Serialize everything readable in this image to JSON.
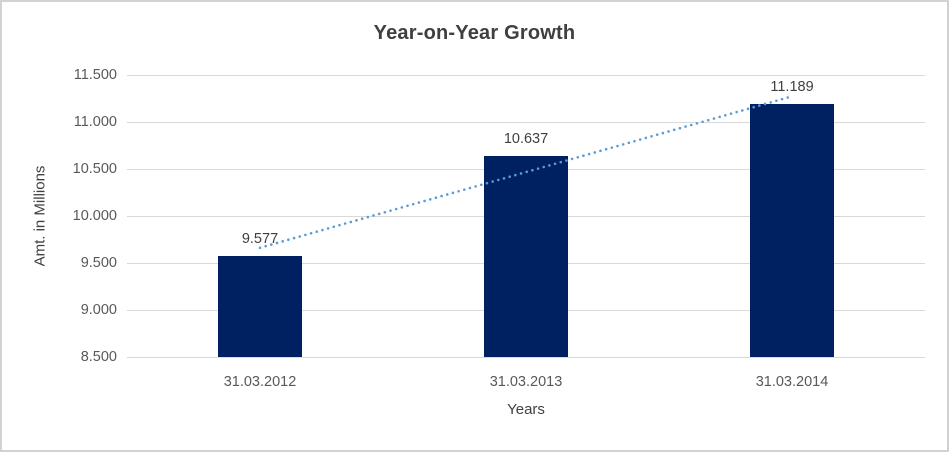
{
  "chart_data": {
    "type": "bar",
    "title": "Year-on-Year Growth",
    "categories": [
      "31.03.2012",
      "31.03.2013",
      "31.03.2014"
    ],
    "values": [
      9.577,
      10.637,
      11.189
    ],
    "data_labels": [
      "9.577",
      "10.637",
      "11.189"
    ],
    "xlabel": "Years",
    "ylabel": "Amt. in Millions",
    "ylim": [
      8.5,
      11.5
    ],
    "ytick_labels": [
      "11.500",
      "11.000",
      "10.500",
      "10.000",
      "9.500",
      "9.000",
      "8.500"
    ],
    "grid": true,
    "legend": "none",
    "bar_color": "#002161",
    "trendline": {
      "type": "linear",
      "style": "dotted",
      "color": "#5b9bd5"
    },
    "colors": {
      "title_text": "#3f3f3f",
      "axis_title_text": "#404040",
      "tick_text": "#595959",
      "gridline": "#d9d9d9",
      "border": "#d2d2d2",
      "background": "#ffffff"
    }
  }
}
